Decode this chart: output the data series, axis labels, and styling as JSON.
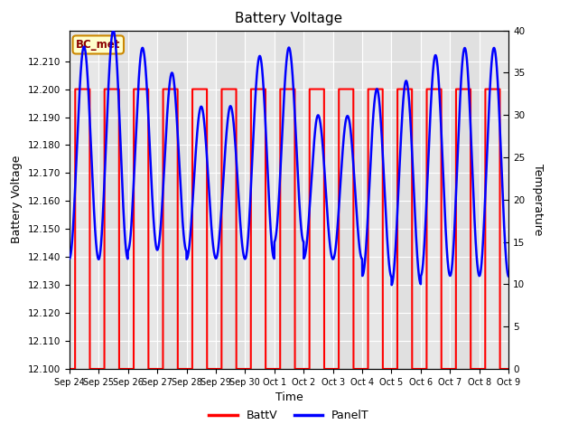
{
  "title": "Battery Voltage",
  "xlabel": "Time",
  "ylabel_left": "Battery Voltage",
  "ylabel_right": "Temperature",
  "ylim_left": [
    12.1,
    12.221
  ],
  "ylim_right": [
    0,
    40
  ],
  "yticks_left": [
    12.1,
    12.11,
    12.12,
    12.13,
    12.14,
    12.15,
    12.16,
    12.17,
    12.18,
    12.19,
    12.2,
    12.21
  ],
  "yticks_right": [
    0,
    5,
    10,
    15,
    20,
    25,
    30,
    35,
    40
  ],
  "annotation_text": "BC_met",
  "annotation_bg": "#ffffcc",
  "annotation_border": "#cc8800",
  "bg_color": "#e0e0e0",
  "grid_color": "white",
  "batt_color": "red",
  "panel_color": "blue",
  "batt_lw": 1.5,
  "panel_lw": 1.8,
  "x_tick_labels": [
    "Sep 24",
    "Sep 25",
    "Sep 26",
    "Sep 27",
    "Sep 28",
    "Sep 29",
    "Sep 30",
    "Oct 1",
    "Oct 2",
    "Oct 3",
    "Oct 4",
    "Oct 5",
    "Oct 6",
    "Oct 7",
    "Oct 8",
    "Oct 9"
  ],
  "batt_high": 12.2,
  "batt_low": 12.1,
  "temp_max": 40,
  "temp_min": 0,
  "figsize": [
    6.4,
    4.8
  ],
  "dpi": 100
}
